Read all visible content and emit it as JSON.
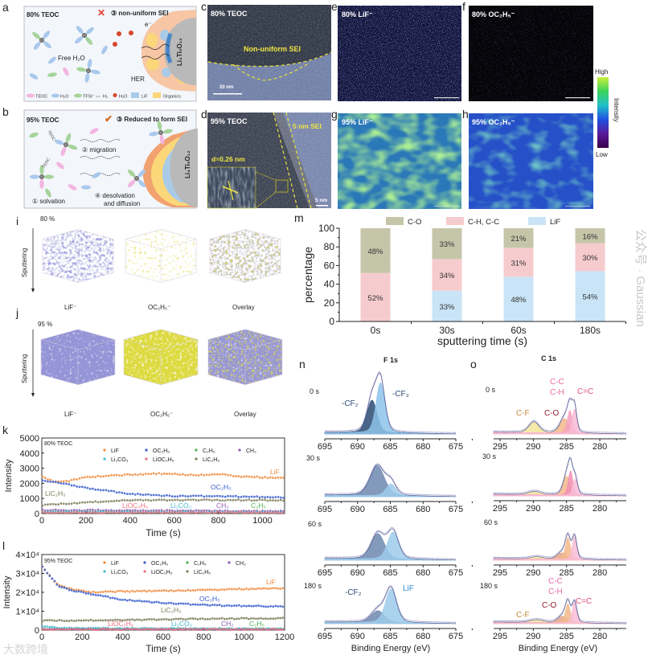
{
  "panel_labels": {
    "a": "a",
    "b": "b",
    "c": "c",
    "d": "d",
    "e": "e",
    "f": "f",
    "g": "g",
    "h": "h",
    "i": "i",
    "j": "j",
    "k": "k",
    "l": "l",
    "m": "m",
    "n": "n",
    "o": "o"
  },
  "schematic_a": {
    "title": "80% TEOC",
    "step": "③ non-uniform SEI",
    "free_water": "Free H₂O",
    "her": "HER",
    "electron": "e⁻",
    "electrode": "Li₄Ti₅O₁₂",
    "mark_icon": "cross-icon",
    "legend": [
      "TEOC",
      "H₂O",
      "TFSI⁻",
      "H₂",
      "H₂O",
      "LiF",
      "Organics"
    ],
    "li_label": "Li"
  },
  "schematic_b": {
    "title": "95% TEOC",
    "step": "③ Reduced to form SEI",
    "migration": "② migration",
    "solvation": "① solvation",
    "desolvation_1": "④ desolvation",
    "desolvation_2": "and diffusion",
    "electrode": "Li₄Ti₅O₁₂",
    "mark_icon": "check-icon",
    "molecule_label": "TEOC"
  },
  "tem_c": {
    "title": "80% TEOC",
    "annotation": "Non-uniform SEI",
    "scale": "20 nm"
  },
  "tem_d": {
    "title": "95% TEOC",
    "annotation": "5 nm SEI",
    "spacing": "d=0.26 nm",
    "scale": "5 nm"
  },
  "maps": {
    "e": "80% LiF⁻",
    "f": "80% OC₂H₅⁻",
    "g": "95% LiF⁻",
    "h": "95% OC₂H₅⁻",
    "colorbar": {
      "high": "High",
      "low": "Low",
      "label": "Intensity",
      "colors": [
        "#c8f03c",
        "#3cd35a",
        "#20c0c8",
        "#2050e0",
        "#5a1a9a",
        "#3a0048"
      ]
    }
  },
  "tof_3d": {
    "i": {
      "conc": "80 %",
      "axis": "Sputtering",
      "labels": [
        "LiF⁻",
        "OC₂H₅⁻",
        "Overlay"
      ]
    },
    "j": {
      "conc": "95 %",
      "axis": "Sputtering",
      "labels": [
        "LiF⁻",
        "OC₂H₅⁻",
        "Overlay"
      ]
    }
  },
  "watermarks": [
    "公众号 · Gaussian",
    "大数跨境"
  ],
  "chart_data": [
    {
      "id": "m",
      "type": "bar",
      "stacked": true,
      "title": "",
      "xlabel": "sputtering time (s)",
      "ylabel": "percentage",
      "ylim": [
        0,
        100
      ],
      "yticks": [
        0,
        20,
        40,
        60,
        80,
        100
      ],
      "categories": [
        "0s",
        "30s",
        "60s",
        "180s"
      ],
      "series": [
        {
          "name": "LiF",
          "color": "#c9e4f6",
          "values": [
            0,
            33,
            48,
            54
          ]
        },
        {
          "name": "C-H, C-C",
          "color": "#f6cbce",
          "values": [
            52,
            34,
            31,
            30
          ]
        },
        {
          "name": "C-O",
          "color": "#c5c6a9",
          "values": [
            48,
            33,
            21,
            16
          ]
        }
      ],
      "legend_order": [
        "C-O",
        "C-H, C-C",
        "LiF"
      ],
      "legend": "top"
    },
    {
      "id": "k",
      "type": "scatter",
      "annotation": "80% TEOC",
      "xlabel": "Time (s)",
      "ylabel": "Intensity",
      "xlim": [
        0,
        1100
      ],
      "ylim": [
        0,
        5000
      ],
      "xticks": [
        0,
        200,
        400,
        600,
        800,
        1000
      ],
      "yticks": [
        0,
        1000,
        2000,
        3000,
        4000,
        5000
      ],
      "ytick_labels": [
        "0",
        "1000",
        "2000",
        "3000",
        "4000",
        "5000"
      ],
      "series": [
        {
          "name": "LiF",
          "color": "#f08a3c",
          "points": [
            [
              0,
              2450
            ],
            [
              60,
              2100
            ],
            [
              120,
              2150
            ],
            [
              200,
              2400
            ],
            [
              300,
              2500
            ],
            [
              530,
              2650
            ],
            [
              700,
              2550
            ],
            [
              820,
              2600
            ],
            [
              900,
              2450
            ],
            [
              1100,
              2350
            ]
          ],
          "label": "LiF"
        },
        {
          "name": "OC₂H₅",
          "color": "#3a5fcd",
          "points": [
            [
              0,
              2200
            ],
            [
              100,
              2000
            ],
            [
              200,
              1700
            ],
            [
              300,
              1500
            ],
            [
              400,
              1300
            ],
            [
              600,
              1150
            ],
            [
              800,
              1150
            ],
            [
              1000,
              1100
            ],
            [
              1100,
              1050
            ]
          ],
          "label": "OC₂H₅"
        },
        {
          "name": "C₂H₅",
          "color": "#4caf50",
          "points": [
            [
              0,
              110
            ],
            [
              1100,
              100
            ]
          ],
          "label": "C₂H₅"
        },
        {
          "name": "CH₂",
          "color": "#8e5bb5",
          "points": [
            [
              0,
              230
            ],
            [
              500,
              200
            ],
            [
              1100,
              150
            ]
          ],
          "label": "CH₂"
        },
        {
          "name": "Li₂CO₃",
          "color": "#3fb8d0",
          "points": [
            [
              0,
              120
            ],
            [
              1100,
              90
            ]
          ],
          "label": "Li₂CO₃"
        },
        {
          "name": "LiOC₂H₅",
          "color": "#ee6f7f",
          "points": [
            [
              0,
              70
            ],
            [
              1100,
              60
            ]
          ],
          "label": "LiOC₂H₅"
        },
        {
          "name": "LiC₂H₅",
          "color": "#7d7d5c",
          "points": [
            [
              0,
              550
            ],
            [
              200,
              750
            ],
            [
              400,
              880
            ],
            [
              700,
              900
            ],
            [
              1100,
              880
            ]
          ],
          "label": "LiC₂H₅"
        }
      ],
      "legend": "top"
    },
    {
      "id": "l",
      "type": "scatter",
      "annotation": "95% TEOC",
      "xlabel": "Time (s)",
      "ylabel": "Intensity",
      "xlim": [
        0,
        1200
      ],
      "ylim": [
        0,
        40000
      ],
      "xticks": [
        0,
        200,
        400,
        600,
        800,
        1000,
        1200
      ],
      "yticks": [
        0,
        10000,
        20000,
        30000,
        40000
      ],
      "ytick_labels": [
        "0",
        "1×10⁴",
        "2×10⁴",
        "3×10⁴",
        "4×10⁴"
      ],
      "series": [
        {
          "name": "LiF",
          "color": "#f08a3c",
          "points": [
            [
              0,
              34000
            ],
            [
              30,
              30000
            ],
            [
              80,
              24000
            ],
            [
              150,
              21500
            ],
            [
              250,
              20000
            ],
            [
              400,
              20500
            ],
            [
              700,
              21000
            ],
            [
              1000,
              21800
            ],
            [
              1200,
              22000
            ]
          ],
          "label": "LiF"
        },
        {
          "name": "OC₂H₅",
          "color": "#3a5fcd",
          "points": [
            [
              0,
              34000
            ],
            [
              30,
              30000
            ],
            [
              80,
              23500
            ],
            [
              150,
              21000
            ],
            [
              250,
              19000
            ],
            [
              400,
              16000
            ],
            [
              650,
              14000
            ],
            [
              900,
              13000
            ],
            [
              1200,
              12500
            ]
          ],
          "label": "OC₂H₅"
        },
        {
          "name": "C₂H₅",
          "color": "#4caf50",
          "points": [
            [
              0,
              600
            ],
            [
              1200,
              600
            ]
          ],
          "label": "C₂H₅"
        },
        {
          "name": "CH₂",
          "color": "#8e5bb5",
          "points": [
            [
              0,
              500
            ],
            [
              1200,
              500
            ]
          ],
          "label": "CH₂"
        },
        {
          "name": "Li₂CO₃",
          "color": "#3fb8d0",
          "points": [
            [
              0,
              2200
            ],
            [
              100,
              1000
            ],
            [
              1200,
              700
            ]
          ],
          "label": "Li₂CO₃"
        },
        {
          "name": "LiOC₂H₅",
          "color": "#ee6f7f",
          "points": [
            [
              0,
              400
            ],
            [
              1200,
              400
            ]
          ],
          "label": "LiOC₂H₅"
        },
        {
          "name": "LiC₂H₅",
          "color": "#7d7d5c",
          "points": [
            [
              0,
              5000
            ],
            [
              400,
              5300
            ],
            [
              800,
              6000
            ],
            [
              1200,
              6300
            ]
          ],
          "label": "LiC₂H₅"
        }
      ],
      "legend": "top"
    },
    {
      "id": "n",
      "type": "line",
      "title": "F 1s",
      "xlabel": "Binding Energy (eV)",
      "xlim": [
        695,
        675
      ],
      "xticks": [
        695,
        690,
        685,
        680,
        675
      ],
      "spectra": [
        {
          "time": "0 s",
          "components": [
            {
              "name": "-CF₂",
              "center": 687.8,
              "amp": 0.6,
              "fwhm": 1.8,
              "color": "#2b4a74",
              "label": "-CF₂"
            },
            {
              "name": "-CF₃",
              "center": 686.5,
              "amp": 0.92,
              "fwhm": 1.6,
              "color": "#8dc3ea",
              "label": "-CF₃"
            }
          ]
        },
        {
          "time": "30 s",
          "components": [
            {
              "name": "-CF₂",
              "center": 687.0,
              "amp": 0.55,
              "fwhm": 2.6,
              "color": "#6f88b0"
            },
            {
              "name": "LiF",
              "center": 684.9,
              "amp": 0.22,
              "fwhm": 1.8,
              "color": "#9ccbeb"
            }
          ]
        },
        {
          "time": "60 s",
          "components": [
            {
              "name": "-CF₂",
              "center": 686.9,
              "amp": 0.47,
              "fwhm": 2.4,
              "color": "#6f88b0"
            },
            {
              "name": "LiF",
              "center": 684.6,
              "amp": 0.5,
              "fwhm": 2.0,
              "color": "#9ccbeb"
            }
          ]
        },
        {
          "time": "180 s",
          "components": [
            {
              "name": "-CF₂",
              "center": 686.9,
              "amp": 0.22,
              "fwhm": 2.4,
              "color": "#6f88b0",
              "label": "-CF₂"
            },
            {
              "name": "LiF",
              "center": 684.9,
              "amp": 0.62,
              "fwhm": 2.0,
              "color": "#9ccbeb",
              "label": "LiF"
            }
          ]
        }
      ]
    },
    {
      "id": "o",
      "type": "line",
      "title": "C 1s",
      "xlabel": "Binding Energy (eV)",
      "xlim": [
        296,
        276
      ],
      "xticks": [
        295,
        290,
        285,
        280
      ],
      "spectra": [
        {
          "time": "0 s",
          "components": [
            {
              "name": "C-F",
              "center": 289.9,
              "amp": 0.2,
              "fwhm": 1.8,
              "color": "#f2e49c",
              "label": "C-F"
            },
            {
              "name": "C-O",
              "center": 285.3,
              "amp": 0.27,
              "fwhm": 1.6,
              "color": "#f2b98a",
              "label": "C-O"
            },
            {
              "name": "C-C/C-H",
              "center": 284.5,
              "amp": 0.42,
              "fwhm": 0.9,
              "color": "#f5a0c2",
              "label": "C-C\nC-H"
            },
            {
              "name": "C=C",
              "center": 283.8,
              "amp": 0.45,
              "fwhm": 0.8,
              "color": "#f8bcd6",
              "label": "C=C"
            }
          ]
        },
        {
          "time": "30 s",
          "components": [
            {
              "name": "C-F",
              "center": 289.8,
              "amp": 0.06,
              "fwhm": 2.2,
              "color": "#f2e49c"
            },
            {
              "name": "C-O",
              "center": 285.0,
              "amp": 0.35,
              "fwhm": 1.2,
              "color": "#f2b98a"
            },
            {
              "name": "C-C/C-H",
              "center": 284.4,
              "amp": 0.45,
              "fwhm": 0.8,
              "color": "#f28fb5"
            },
            {
              "name": "C=C",
              "center": 283.7,
              "amp": 0.3,
              "fwhm": 0.8,
              "color": "#f8bcd6"
            }
          ]
        },
        {
          "time": "60 s",
          "components": [
            {
              "name": "C-F",
              "center": 289.5,
              "amp": 0.04,
              "fwhm": 2.4,
              "color": "#f2e49c"
            },
            {
              "name": "C-O",
              "center": 285.7,
              "amp": 0.12,
              "fwhm": 1.6,
              "color": "#e8a58a"
            },
            {
              "name": "C-C/C-H",
              "center": 284.8,
              "amp": 0.4,
              "fwhm": 0.9,
              "color": "#f2b98a"
            },
            {
              "name": "C=C",
              "center": 283.8,
              "amp": 0.42,
              "fwhm": 0.8,
              "color": "#f8bcd6"
            }
          ]
        },
        {
          "time": "180 s",
          "components": [
            {
              "name": "C-F",
              "center": 289.5,
              "amp": 0.05,
              "fwhm": 2.4,
              "color": "#f2e49c",
              "label": "C-F"
            },
            {
              "name": "C-O",
              "center": 285.6,
              "amp": 0.12,
              "fwhm": 1.6,
              "color": "#e8a58a",
              "label": "C-O"
            },
            {
              "name": "C-C/C-H",
              "center": 284.8,
              "amp": 0.35,
              "fwhm": 0.9,
              "color": "#f2b98a",
              "label": "C-C\nC-H"
            },
            {
              "name": "C=C",
              "center": 283.8,
              "amp": 0.38,
              "fwhm": 0.8,
              "color": "#f8bcd6",
              "label": "C=C"
            }
          ]
        }
      ]
    }
  ]
}
